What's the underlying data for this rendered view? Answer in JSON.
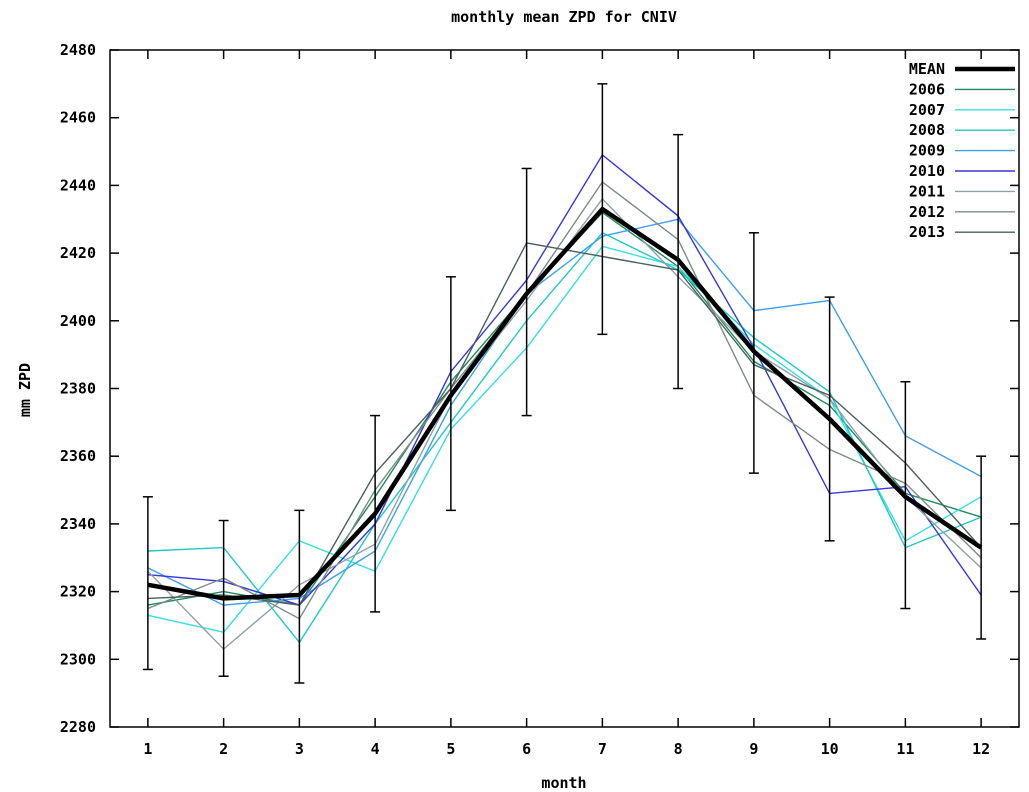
{
  "chart_data": {
    "type": "line",
    "title": "monthly mean ZPD for CNIV",
    "xlabel": "month",
    "ylabel": "mm ZPD",
    "x": [
      1,
      2,
      3,
      4,
      5,
      6,
      7,
      8,
      9,
      10,
      11,
      12
    ],
    "xlim": [
      0.5,
      12.5
    ],
    "ylim": [
      2280,
      2480
    ],
    "xticks": [
      1,
      2,
      3,
      4,
      5,
      6,
      7,
      8,
      9,
      10,
      11,
      12
    ],
    "yticks": [
      2280,
      2300,
      2320,
      2340,
      2360,
      2380,
      2400,
      2420,
      2440,
      2460,
      2480
    ],
    "grid": false,
    "legend_position": "top-right",
    "mean": {
      "name": "MEAN",
      "color": "#000000",
      "values": [
        2322,
        2318,
        2319,
        2343,
        2378,
        2408,
        2433,
        2418,
        2391,
        2371,
        2348,
        2333
      ],
      "error_low": [
        2297,
        2295,
        2293,
        2314,
        2344,
        2372,
        2396,
        2380,
        2355,
        2335,
        2315,
        2306
      ],
      "error_high": [
        2348,
        2341,
        2344,
        2372,
        2413,
        2445,
        2470,
        2455,
        2426,
        2407,
        2382,
        2360
      ]
    },
    "series": [
      {
        "name": "2006",
        "color": "#1e8c5a",
        "values": [
          2316,
          2320,
          2316,
          2348,
          2382,
          2408,
          2432,
          2416,
          2388,
          2375,
          2349,
          2342
        ]
      },
      {
        "name": "2007",
        "color": "#33e0e0",
        "values": [
          2313,
          2308,
          2335,
          2326,
          2368,
          2392,
          2422,
          2416,
          2393,
          2377,
          2335,
          2348
        ]
      },
      {
        "name": "2008",
        "color": "#20c8c8",
        "values": [
          2332,
          2333,
          2305,
          2340,
          2370,
          2400,
          2426,
          2415,
          2395,
          2379,
          2333,
          2342
        ]
      },
      {
        "name": "2009",
        "color": "#3f9fef",
        "values": [
          2327,
          2316,
          2318,
          2332,
          2375,
          2408,
          2425,
          2430,
          2403,
          2406,
          2366,
          2354
        ]
      },
      {
        "name": "2010",
        "color": "#3636d8",
        "values": [
          2325,
          2323,
          2316,
          2340,
          2385,
          2412,
          2449,
          2431,
          2392,
          2349,
          2351,
          2319
        ]
      },
      {
        "name": "2011",
        "color": "#90a0a8",
        "values": [
          2326,
          2303,
          2322,
          2334,
          2378,
          2406,
          2436,
          2413,
          2391,
          2377,
          2348,
          2327
        ]
      },
      {
        "name": "2012",
        "color": "#7c8c84",
        "values": [
          2315,
          2324,
          2312,
          2350,
          2380,
          2408,
          2441,
          2424,
          2378,
          2362,
          2352,
          2330
        ]
      },
      {
        "name": "2013",
        "color": "#4a6060",
        "values": [
          2318,
          2319,
          2316,
          2355,
          2380,
          2423,
          2419,
          2415,
          2387,
          2378,
          2358,
          2333
        ]
      }
    ]
  }
}
